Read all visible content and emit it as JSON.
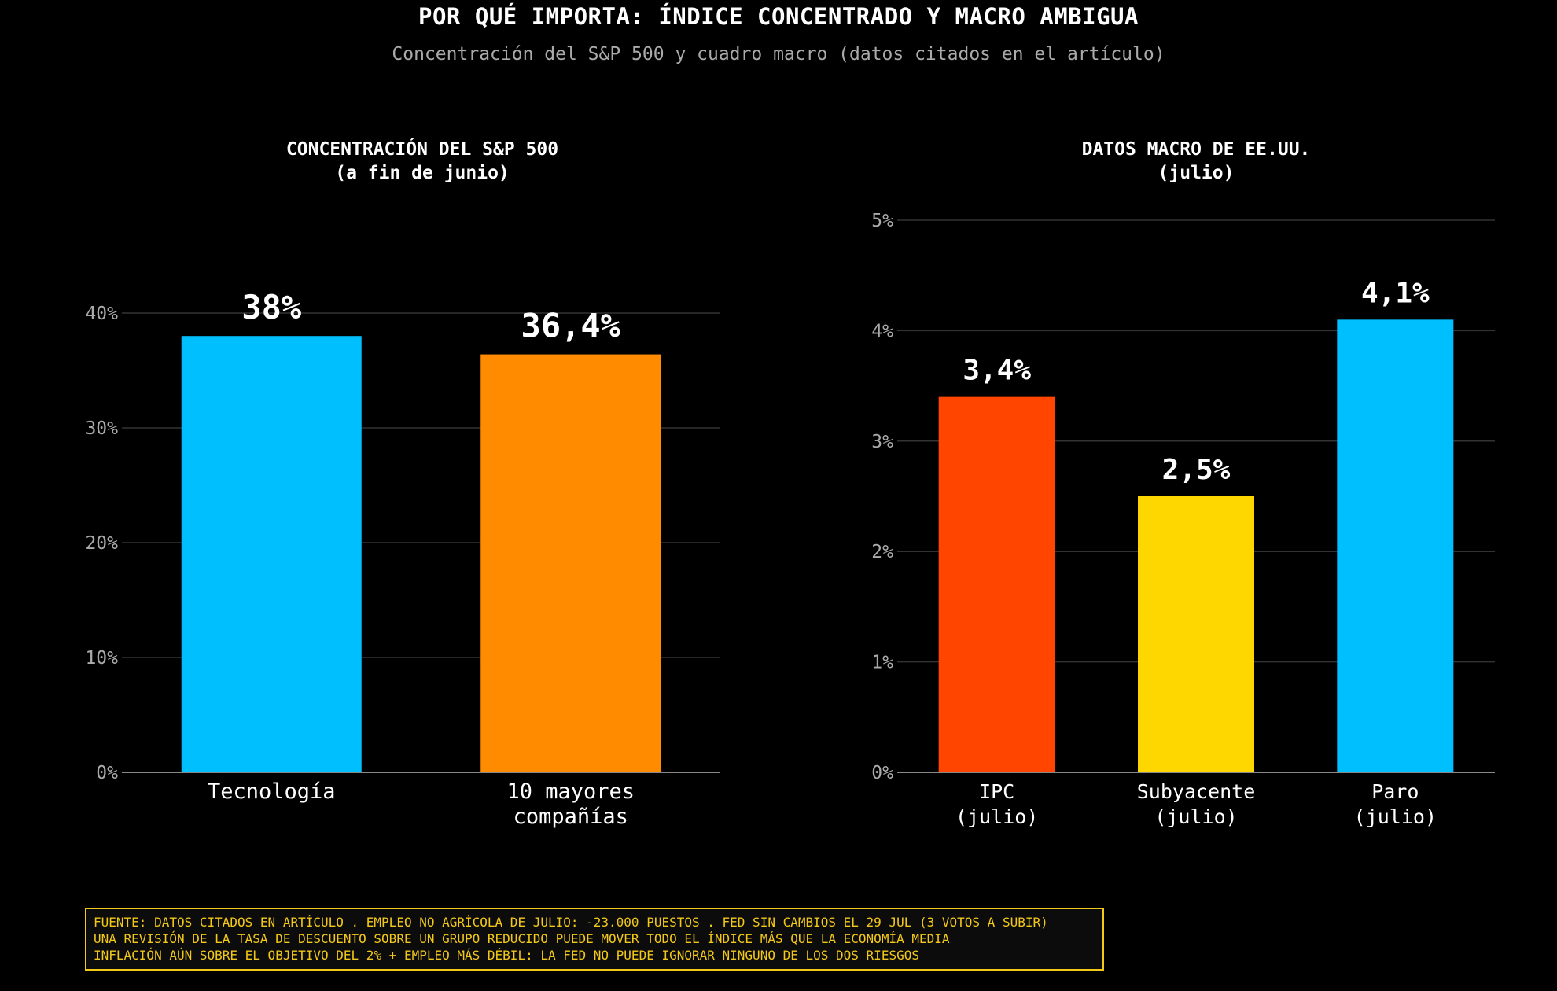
{
  "title": "POR QUÉ IMPORTA: ÍNDICE CONCENTRADO Y MACRO AMBIGUA",
  "subtitle": "Concentración del S&P 500 y cuadro macro (datos citados en el artículo)",
  "chart_data": [
    {
      "type": "bar",
      "title": [
        "CONCENTRACIÓN DEL S&P 500",
        "(a fin de junio)"
      ],
      "categories": [
        [
          "Tecnología"
        ],
        [
          "10 mayores",
          "compañías"
        ]
      ],
      "values": [
        38,
        36.4
      ],
      "value_labels": [
        "38%",
        "36,4%"
      ],
      "colors": [
        "#00bfff",
        "#ff8c00"
      ],
      "ylim": [
        0,
        40
      ],
      "yticks": [
        0,
        10,
        20,
        30,
        40
      ],
      "ytick_labels": [
        "0%",
        "10%",
        "20%",
        "30%",
        "40%"
      ],
      "grid": true
    },
    {
      "type": "bar",
      "title": [
        "DATOS MACRO DE EE.UU.",
        "(julio)"
      ],
      "categories": [
        [
          "IPC",
          "(julio)"
        ],
        [
          "Subyacente",
          "(julio)"
        ],
        [
          "Paro",
          "(julio)"
        ]
      ],
      "values": [
        3.4,
        2.5,
        4.1
      ],
      "value_labels": [
        "3,4%",
        "2,5%",
        "4,1%"
      ],
      "colors": [
        "#ff4500",
        "#ffd700",
        "#00bfff"
      ],
      "ylim": [
        0,
        5
      ],
      "yticks": [
        0,
        1,
        2,
        3,
        4,
        5
      ],
      "ytick_labels": [
        "0%",
        "1%",
        "2%",
        "3%",
        "4%",
        "5%"
      ],
      "grid": true
    }
  ],
  "footer": {
    "lines": [
      "FUENTE: DATOS CITADOS EN ARTÍCULO . EMPLEO NO AGRÍCOLA DE JULIO: -23.000 PUESTOS . FED SIN CAMBIOS EL 29 JUL (3 VOTOS A SUBIR)",
      "UNA REVISIÓN DE LA TASA DE DESCUENTO SOBRE UN GRUPO REDUCIDO PUEDE MOVER TODO EL ÍNDICE MÁS QUE LA ECONOMÍA MEDIA",
      "INFLACIÓN AÚN SOBRE EL OBJETIVO DEL 2% + EMPLEO MÁS DÉBIL: LA FED NO PUEDE IGNORAR NINGUNO DE LOS DOS RIESGOS"
    ]
  }
}
